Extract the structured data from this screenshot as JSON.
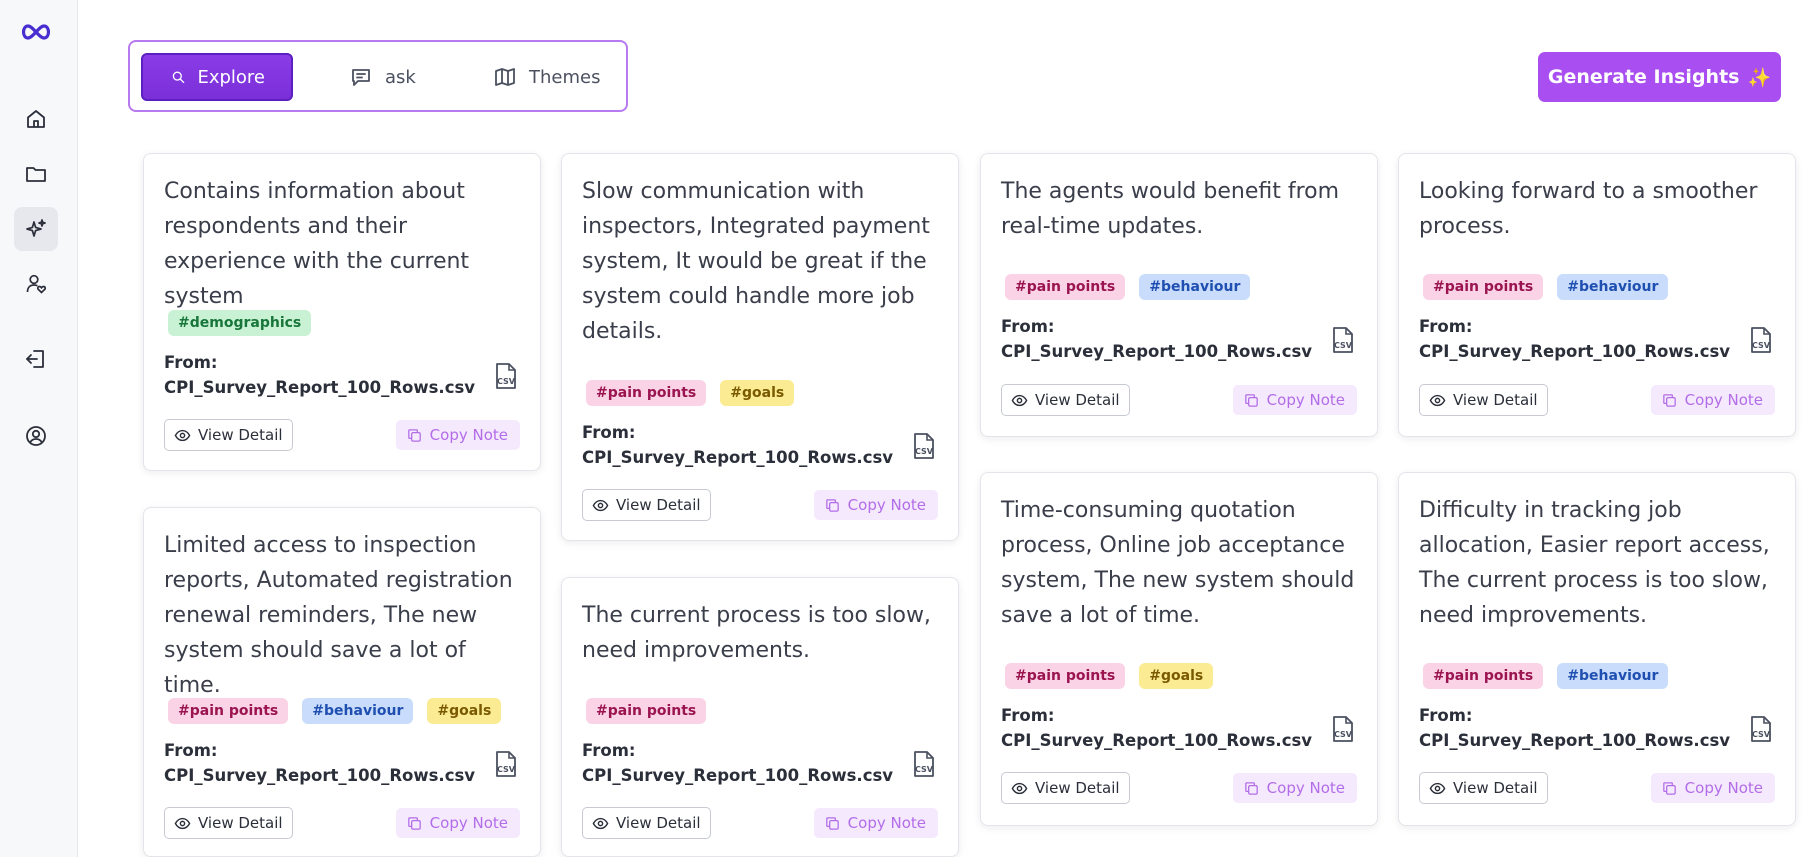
{
  "tabs": {
    "explore": "Explore",
    "ask": "ask",
    "themes": "Themes"
  },
  "generate_button": {
    "label": "Generate Insights",
    "sparkle": "✨"
  },
  "actions": {
    "view_label": "View Detail",
    "copy_label": "Copy Note",
    "from_label": "From:"
  },
  "tag_labels": {
    "pain": "#pain points",
    "beh": "#behaviour",
    "goals": "#goals",
    "demo": "#demographics"
  },
  "cards": [
    {
      "text": "Contains information about respondents and their experience with the current system",
      "tags": [
        "demo"
      ],
      "source": "CPI_Survey_Report_100_Rows.csv"
    },
    {
      "text": "Slow communication with inspectors, Integrated payment system, It would be great if the system could handle more job details.",
      "tags": [
        "pain",
        "goals"
      ],
      "source": "CPI_Survey_Report_100_Rows.csv"
    },
    {
      "text": "The agents would benefit from real-time updates.",
      "tags": [
        "pain",
        "beh"
      ],
      "source": "CPI_Survey_Report_100_Rows.csv"
    },
    {
      "text": "Looking forward to a smoother process.",
      "tags": [
        "pain",
        "beh"
      ],
      "source": "CPI_Survey_Report_100_Rows.csv"
    },
    {
      "text": "Limited access to inspection reports, Automated registration renewal reminders, The new system should save a lot of time.",
      "tags": [
        "pain",
        "beh",
        "goals"
      ],
      "source": "CPI_Survey_Report_100_Rows.csv"
    },
    {
      "text": "The current process is too slow, need improvements.",
      "tags": [
        "pain"
      ],
      "source": "CPI_Survey_Report_100_Rows.csv"
    },
    {
      "text": "Time-consuming quotation process, Online job acceptance system, The new system should save a lot of time.",
      "tags": [
        "pain",
        "goals"
      ],
      "source": "CPI_Survey_Report_100_Rows.csv"
    },
    {
      "text": "Difficulty in tracking job allocation, Easier report access, The current process is too slow, need improvements.",
      "tags": [
        "pain",
        "beh"
      ],
      "source": "CPI_Survey_Report_100_Rows.csv"
    }
  ],
  "file_icon_label": "CSV",
  "colors": {
    "accent": "#7b2fd8",
    "generate": "#a94ef0",
    "copy_text": "#b36de8"
  }
}
